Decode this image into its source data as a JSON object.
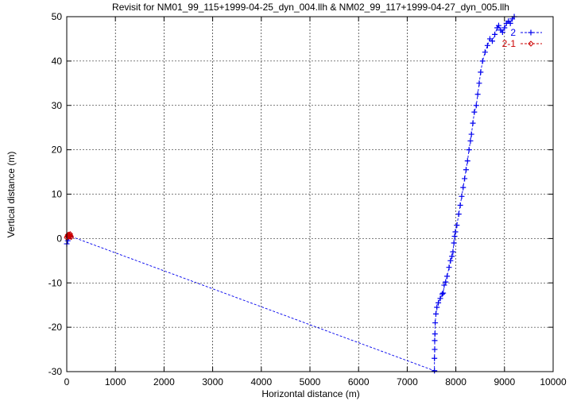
{
  "chart_data": {
    "type": "line",
    "title": "Revisit for NM01_99_115+1999-04-25_dyn_004.llh & NM02_99_117+1999-04-27_dyn_005.llh",
    "xlabel": "Horizontal distance (m)",
    "ylabel": "Vertical distance (m)",
    "xlim": [
      0,
      10000
    ],
    "ylim": [
      -30,
      50
    ],
    "xticks": [
      0,
      1000,
      2000,
      3000,
      4000,
      5000,
      6000,
      7000,
      8000,
      9000,
      10000
    ],
    "yticks": [
      -30,
      -20,
      -10,
      0,
      10,
      20,
      30,
      40,
      50
    ],
    "grid": true,
    "legend_position": "top-right",
    "series": [
      {
        "name": "2",
        "color": "#0000ee",
        "marker": "plus",
        "line": "dashed",
        "points": [
          [
            0,
            -1.2
          ],
          [
            20,
            -0.5
          ],
          [
            40,
            0.3
          ],
          [
            60,
            0.8
          ],
          [
            80,
            0.5
          ],
          [
            7560,
            -29.8
          ],
          [
            7560,
            -27
          ],
          [
            7565,
            -25
          ],
          [
            7565,
            -23
          ],
          [
            7570,
            -21.5
          ],
          [
            7575,
            -19
          ],
          [
            7590,
            -17
          ],
          [
            7610,
            -15.5
          ],
          [
            7640,
            -14.5
          ],
          [
            7680,
            -13.5
          ],
          [
            7720,
            -12.5
          ],
          [
            7740,
            -12.3
          ],
          [
            7760,
            -10.5
          ],
          [
            7790,
            -9.8
          ],
          [
            7820,
            -8.5
          ],
          [
            7860,
            -6.5
          ],
          [
            7890,
            -5
          ],
          [
            7920,
            -4
          ],
          [
            7940,
            -3
          ],
          [
            7960,
            -1
          ],
          [
            7975,
            0.5
          ],
          [
            7990,
            1.5
          ],
          [
            8020,
            3
          ],
          [
            8060,
            5.5
          ],
          [
            8090,
            7.5
          ],
          [
            8120,
            9.5
          ],
          [
            8150,
            11.5
          ],
          [
            8180,
            13.5
          ],
          [
            8210,
            15.5
          ],
          [
            8240,
            17.5
          ],
          [
            8270,
            20
          ],
          [
            8300,
            22
          ],
          [
            8320,
            23.5
          ],
          [
            8350,
            26
          ],
          [
            8380,
            28.5
          ],
          [
            8420,
            30
          ],
          [
            8450,
            32.5
          ],
          [
            8480,
            35
          ],
          [
            8510,
            37.5
          ],
          [
            8550,
            40
          ],
          [
            8600,
            42
          ],
          [
            8650,
            43.5
          ],
          [
            8700,
            45
          ],
          [
            8750,
            44.5
          ],
          [
            8800,
            46
          ],
          [
            8850,
            47.5
          ],
          [
            8880,
            48
          ],
          [
            8920,
            47
          ],
          [
            8960,
            46.5
          ],
          [
            9000,
            47.5
          ],
          [
            9040,
            48.5
          ],
          [
            9080,
            49
          ],
          [
            9120,
            48.5
          ],
          [
            9160,
            49.5
          ],
          [
            9200,
            50
          ]
        ]
      },
      {
        "name": "2-1",
        "color": "#cc0000",
        "marker": "diamond",
        "line": "dashed",
        "points": [
          [
            0,
            0.2
          ],
          [
            10,
            0.5
          ],
          [
            20,
            0.8
          ],
          [
            30,
            0.6
          ],
          [
            40,
            0.9
          ],
          [
            50,
            0.4
          ],
          [
            60,
            0.7
          ],
          [
            70,
            1.0
          ],
          [
            80,
            0.6
          ],
          [
            90,
            0.3
          ]
        ]
      }
    ]
  }
}
